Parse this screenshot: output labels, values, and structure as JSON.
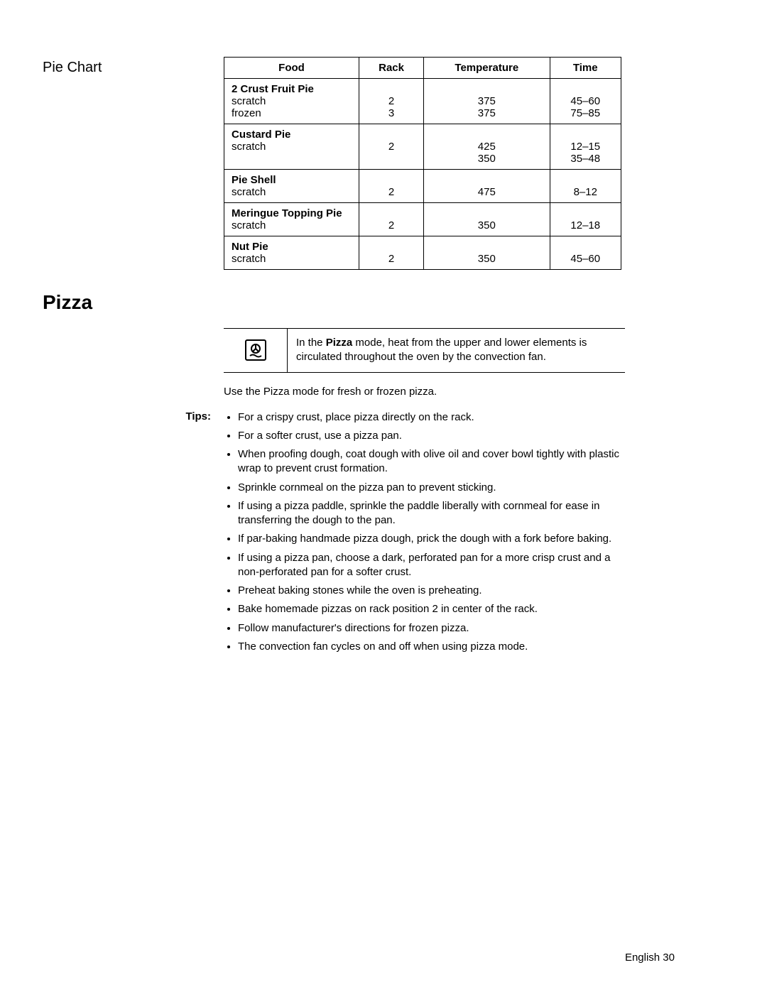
{
  "section_label": "Pie Chart",
  "table": {
    "headers": {
      "food": "Food",
      "rack": "Rack",
      "temp": "Temperature",
      "time": "Time"
    },
    "groups": [
      {
        "title": "2 Crust Fruit Pie",
        "rows": [
          {
            "food": "scratch",
            "rack": "2",
            "temp": "375",
            "time": "45–60"
          },
          {
            "food": "frozen",
            "rack": "3",
            "temp": "375",
            "time": "75–85"
          }
        ]
      },
      {
        "title": "Custard Pie",
        "rows": [
          {
            "food": "scratch",
            "rack": "2",
            "temp": "425",
            "time": "12–15"
          },
          {
            "food": "",
            "rack": "",
            "temp": "350",
            "time": "35–48"
          }
        ]
      },
      {
        "title": "Pie Shell",
        "rows": [
          {
            "food": "scratch",
            "rack": "2",
            "temp": "475",
            "time": "8–12"
          }
        ]
      },
      {
        "title": "Meringue Topping Pie",
        "rows": [
          {
            "food": "scratch",
            "rack": "2",
            "temp": "350",
            "time": "12–18"
          }
        ]
      },
      {
        "title": "Nut Pie",
        "rows": [
          {
            "food": "scratch",
            "rack": "2",
            "temp": "350",
            "time": "45–60"
          }
        ]
      }
    ]
  },
  "heading": "Pizza",
  "info_box": {
    "pre": "In the ",
    "bold": "Pizza",
    "post": " mode, heat from the upper and lower elements is circulated throughout the oven by the convection fan."
  },
  "intro": "Use the Pizza mode for fresh or frozen pizza.",
  "tips_label": "Tips:",
  "tips": [
    "For a crispy crust, place pizza directly on the rack.",
    "For a softer crust, use a pizza pan.",
    "When proofing dough, coat dough with olive oil and cover bowl tightly with plastic wrap to prevent crust formation.",
    "Sprinkle cornmeal on the pizza pan to prevent sticking.",
    "If using a pizza paddle, sprinkle the paddle liberally with cornmeal for ease in transferring the dough to the pan.",
    "If par-baking handmade pizza dough, prick the dough with a fork before baking.",
    "If using a pizza pan, choose a dark, perforated pan for a more crisp crust and a non-perforated pan for a softer crust.",
    "Preheat baking stones while the oven is preheating.",
    "Bake homemade pizzas on rack position 2 in center of the rack.",
    "Follow manufacturer's directions for frozen pizza.",
    "The convection fan cycles on and off when using pizza mode."
  ],
  "footer": "English 30"
}
